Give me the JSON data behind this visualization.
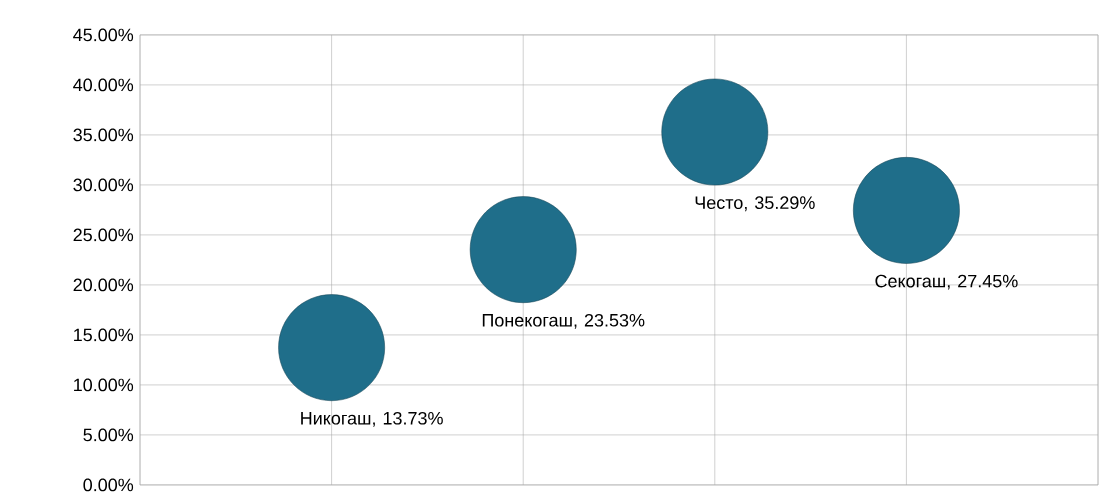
{
  "chart_data": {
    "type": "bubble",
    "categories": [
      null,
      null,
      null,
      null
    ],
    "values": [
      13.73,
      23.53,
      35.29,
      27.45
    ],
    "sizes": [
      1,
      1,
      1,
      1
    ],
    "value_labels": [
      "Никогаш, 13.73%",
      "Понекогаш, 23.53%",
      "Често, 35.29%",
      "Секогаш, 27.45%"
    ],
    "color": "#1f6e8a",
    "ylim": [
      0,
      45
    ],
    "yticks": [
      {
        "value": 0,
        "label": "0.00%"
      },
      {
        "value": 5,
        "label": "5.00%"
      },
      {
        "value": 10,
        "label": "10.00%"
      },
      {
        "value": 15,
        "label": "15.00%"
      },
      {
        "value": 20,
        "label": "20.00%"
      },
      {
        "value": 25,
        "label": "25.00%"
      },
      {
        "value": 30,
        "label": "30.00%"
      },
      {
        "value": 35,
        "label": "35.00%"
      },
      {
        "value": 40,
        "label": "40.00%"
      },
      {
        "value": 45,
        "label": "45.00%"
      }
    ],
    "grid": true,
    "tick_labels": "y"
  }
}
